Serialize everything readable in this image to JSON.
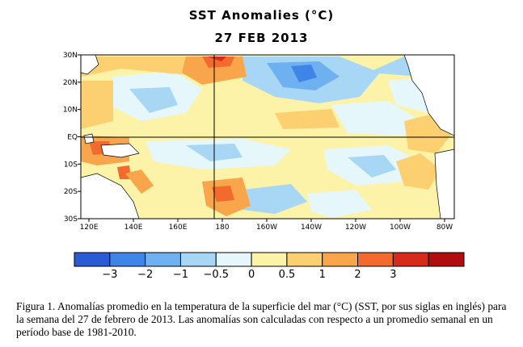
{
  "title": "SST Anomalies (°C)",
  "date": "27 FEB 2013",
  "map": {
    "lat_labels": [
      "30N",
      "20N",
      "10N",
      "EQ",
      "10S",
      "20S",
      "30S"
    ],
    "lon_labels": [
      "120E",
      "140E",
      "160E",
      "180",
      "160W",
      "140W",
      "120W",
      "100W",
      "80W"
    ]
  },
  "colorbar": {
    "colors": [
      "#2a5ad6",
      "#3f85e8",
      "#6fb0f0",
      "#a8d6f5",
      "#e6f7fb",
      "#fdf3a8",
      "#fcd071",
      "#f8a54b",
      "#f26a2e",
      "#d62a1a",
      "#b00e0e"
    ],
    "tick_labels": [
      "−3",
      "−2",
      "−1",
      "−0.5",
      "0",
      "0.5",
      "1",
      "2",
      "3"
    ]
  },
  "caption": "Figura 1. Anomalías promedio en la temperatura de la superficie del mar (°C) (SST, por sus siglas en inglés) para la semana del 27 de febrero de  2013.  Las anomalías son calculadas con respecto a un promedio semanal en un período base de 1981-2010."
}
